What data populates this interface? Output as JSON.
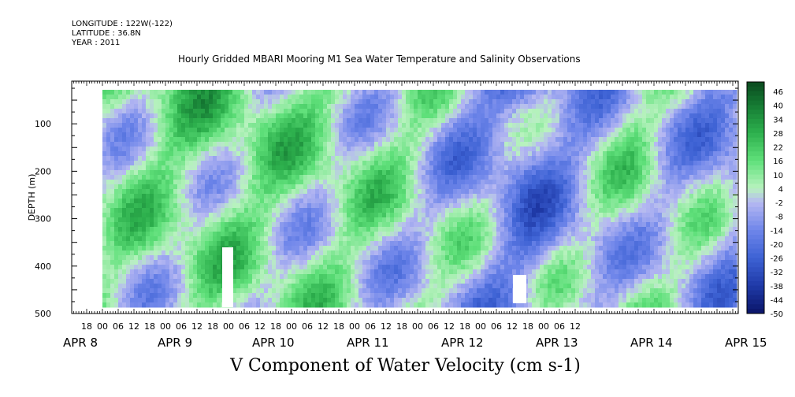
{
  "header": {
    "longitude": "LONGITUDE : 122W(-122)",
    "latitude": "LATITUDE : 36.8N",
    "year": "YEAR : 2011"
  },
  "chart_data": {
    "type": "heatmap",
    "title": "Hourly Gridded MBARI Mooring M1 Sea Water Temperature and Salinity Observations",
    "xlabel": "V Component of Water Velocity (cm s-1)",
    "ylabel": "DEPTH (m)",
    "ylim": [
      500,
      10
    ],
    "y_ticks": [
      100,
      200,
      300,
      400,
      500
    ],
    "x_hour_ticks": [
      "18",
      "00",
      "06",
      "12",
      "18",
      "00",
      "06",
      "12",
      "18",
      "00",
      "06",
      "12",
      "18",
      "00",
      "06",
      "12",
      "18",
      "00",
      "06",
      "12",
      "18",
      "00",
      "06",
      "12",
      "18",
      "00",
      "06",
      "12",
      "18",
      "00",
      "06",
      "12"
    ],
    "x_date_labels": [
      "APR 8",
      "APR 9",
      "APR 10",
      "APR 11",
      "APR 12",
      "APR 13",
      "APR 14",
      "APR 15"
    ],
    "colorbar_labels": [
      "46",
      "40",
      "34",
      "28",
      "22",
      "16",
      "10",
      "4",
      "-2",
      "-8",
      "-14",
      "-20",
      "-26",
      "-32",
      "-38",
      "-44",
      "-50"
    ],
    "colorbar_range": [
      -50,
      50
    ],
    "colors": {
      "positive_strong": "#0b4a1f",
      "positive": "#2fd45a",
      "positive_light": "#a8f0b0",
      "negative_light": "#b6b8f2",
      "negative": "#5a6fe0",
      "negative_strong": "#0a1468"
    },
    "data_blocks": [
      {
        "time_range": "APR 8 00 – APR 9 06",
        "dominant_value": 8
      },
      {
        "time_range": "APR 9 06 – APR 10 00",
        "dominant_value": 14
      },
      {
        "time_range": "APR 10 00 – APR 11 06",
        "dominant_value": 10
      },
      {
        "time_range": "APR 11 06 – APR 12 00",
        "dominant_value": 4
      },
      {
        "time_range": "APR 12 00 – APR 13 12",
        "dominant_value": -20
      },
      {
        "time_range": "APR 13 12 – APR 14 12",
        "dominant_value": 6
      },
      {
        "time_range": "APR 14 12 – APR 15 18",
        "dominant_value": -12
      }
    ]
  }
}
